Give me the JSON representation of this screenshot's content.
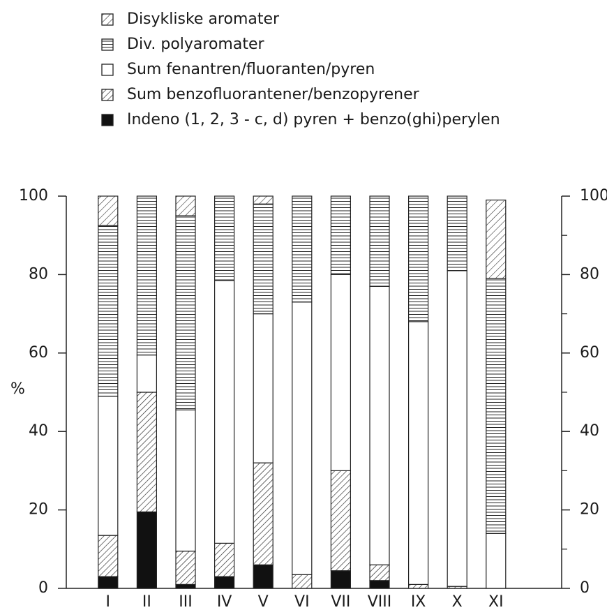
{
  "chart_data": {
    "type": "stacked-bar",
    "y_label": "%",
    "categories": [
      "I",
      "II",
      "III",
      "IV",
      "V",
      "VI",
      "VII",
      "VIII",
      "IX",
      "X",
      "XI"
    ],
    "series": [
      {
        "name": "Indeno (1, 2, 3 - c, d) pyren + benzo(ghi)perylen",
        "color": "#111111",
        "pattern": "solid",
        "values": [
          3,
          19.5,
          1,
          3,
          6,
          0,
          4.5,
          2,
          0,
          0,
          0
        ]
      },
      {
        "name": "Sum benzofluorantener/benzopyrener",
        "color": "#222222",
        "pattern": "diagonal",
        "values": [
          10.5,
          30.5,
          8.5,
          8.5,
          26,
          3.5,
          25.5,
          4,
          1,
          0.5,
          0
        ]
      },
      {
        "name": "Sum fenantren/fluoranten/pyren",
        "color": "#222222",
        "pattern": "none",
        "values": [
          35.5,
          9.5,
          36,
          67,
          38,
          69.5,
          50,
          71,
          67,
          80.5,
          14
        ]
      },
      {
        "name": "Div. polyaromater",
        "color": "#222222",
        "pattern": "horizontal",
        "values": [
          43.5,
          40.5,
          49.5,
          21.5,
          28,
          27,
          20,
          23,
          32,
          19,
          65
        ]
      },
      {
        "name": "Disykliske aromater",
        "color": "#222222",
        "pattern": "diagonal-wide",
        "values": [
          7.5,
          0,
          5,
          0,
          2,
          0,
          0,
          0,
          0,
          0,
          20
        ]
      }
    ],
    "legend_order": [
      4,
      3,
      2,
      1,
      0
    ],
    "ylim": [
      0,
      100
    ],
    "yticks": [
      0,
      20,
      40,
      60,
      80,
      100
    ],
    "y2lim": [
      0,
      100
    ],
    "y2ticks": [
      0,
      20,
      40,
      60,
      80,
      100
    ],
    "y2minorticks": [
      10,
      30,
      50,
      70,
      90
    ]
  }
}
